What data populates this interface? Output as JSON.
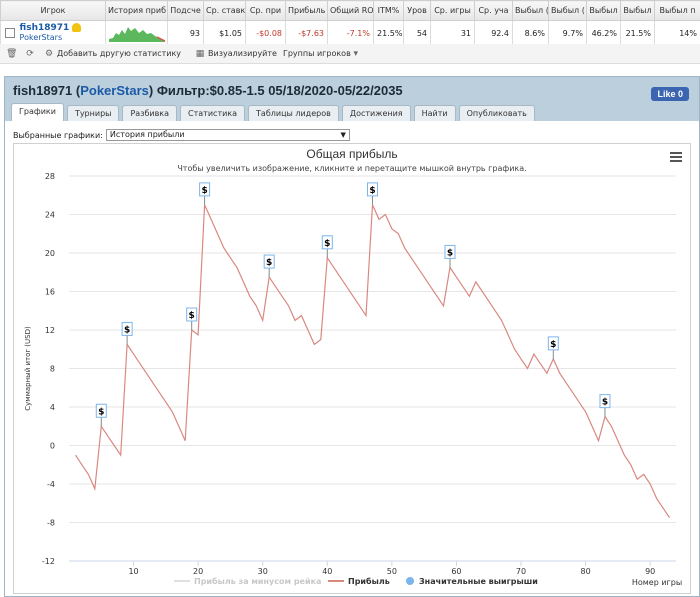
{
  "stats": {
    "headers": [
      "Игрок",
      "История приб",
      "Подсче",
      "Ср. ставк",
      "Ср. при",
      "Прибыль",
      "Общий RO",
      "ITM%",
      "Уров",
      "Ср. игры",
      "Ср. уча",
      "Выбыл (",
      "Выбыл (",
      "Выбыл",
      "Выбыл",
      "Выбыл п"
    ],
    "player": "fish18971",
    "site": "PokerStars",
    "cells": [
      "93",
      "$1.05",
      "-$0.08",
      "-$7.63",
      "-7.1%",
      "21.5%",
      "54",
      "31",
      "92.4",
      "8.6%",
      "9.7%",
      "46.2%",
      "21.5%",
      "14%"
    ]
  },
  "toolbar": {
    "add_stats": "Добавить другую статистику",
    "visualize": "Визуализируйте",
    "groups": "Группы игроков"
  },
  "panel": {
    "player": "fish18971",
    "site": "PokerStars",
    "filter": "Фильтр:$0.85-1.5 05/18/2020-05/22/2035",
    "like": "Like 0",
    "tabs": [
      "Графики",
      "Турниры",
      "Разбивка",
      "Статистика",
      "Таблицы лидеров",
      "Достижения",
      "Найти",
      "Опубликовать"
    ],
    "selected_label": "Выбранные графики:",
    "selected_value": "История прибыли"
  },
  "chart_data": {
    "type": "line",
    "title": "Общая прибыль",
    "subtitle": "Чтобы увеличить изображение, кликните и перетащите мышкой внутрь графика.",
    "xlabel": "Номер игры",
    "ylabel": "Суммарный итог (USD)",
    "xlim": [
      0,
      94
    ],
    "ylim": [
      -12,
      28
    ],
    "xticks": [
      10,
      20,
      30,
      40,
      50,
      60,
      70,
      80,
      90
    ],
    "yticks": [
      -12,
      -8,
      -4,
      0,
      4,
      8,
      12,
      16,
      20,
      24,
      28
    ],
    "grid": "horizontal",
    "legend_position": "bottom",
    "legend": [
      "Прибыль за минусом рейка",
      "Прибыль",
      "Значительные выигрыши"
    ],
    "colors": {
      "profit": "#d98880",
      "rake": "#e0e0e0",
      "wins": "#7cb5ec"
    },
    "series": [
      {
        "name": "Прибыль",
        "x": [
          1,
          2,
          3,
          4,
          5,
          6,
          7,
          8,
          9,
          10,
          11,
          12,
          13,
          14,
          15,
          16,
          17,
          18,
          19,
          20,
          21,
          22,
          23,
          24,
          25,
          26,
          27,
          28,
          29,
          30,
          31,
          32,
          33,
          34,
          35,
          36,
          37,
          38,
          39,
          40,
          41,
          42,
          43,
          44,
          45,
          46,
          47,
          48,
          49,
          50,
          51,
          52,
          53,
          54,
          55,
          56,
          57,
          58,
          59,
          60,
          61,
          62,
          63,
          64,
          65,
          66,
          67,
          68,
          69,
          70,
          71,
          72,
          73,
          74,
          75,
          76,
          77,
          78,
          79,
          80,
          81,
          82,
          83,
          84,
          85,
          86,
          87,
          88,
          89,
          90,
          91,
          92,
          93
        ],
        "y": [
          -1,
          -2,
          -3,
          -4.5,
          2,
          1,
          0,
          -1,
          10.5,
          9.5,
          8.5,
          7.5,
          6.5,
          5.5,
          4.5,
          3.5,
          2,
          0.5,
          12,
          11.5,
          25,
          23.5,
          22,
          20.5,
          19.5,
          18.5,
          17,
          15.5,
          14.5,
          13,
          17.5,
          16.5,
          15.5,
          14.5,
          13,
          13.5,
          12,
          10.5,
          11,
          19.5,
          18.5,
          17.5,
          16.5,
          15.5,
          14.5,
          13.5,
          25,
          23.5,
          24,
          22.5,
          22,
          20.5,
          19.5,
          18.5,
          17.5,
          16.5,
          15.5,
          14.5,
          18.5,
          17.5,
          16.5,
          15.5,
          17,
          16,
          15,
          14,
          13,
          11.5,
          10,
          9,
          8,
          9.5,
          8.5,
          7.5,
          9,
          7.5,
          6.5,
          5.5,
          4.5,
          3.5,
          2,
          0.5,
          3,
          2,
          0.5,
          -1,
          -2,
          -3.5,
          -3,
          -4,
          -5.5,
          -6.5,
          -7.5
        ]
      }
    ],
    "big_wins": [
      {
        "x": 5,
        "y": 2,
        "label": "$"
      },
      {
        "x": 9,
        "y": 10.5,
        "label": "$"
      },
      {
        "x": 19,
        "y": 12,
        "label": "$"
      },
      {
        "x": 21,
        "y": 25,
        "label": "$"
      },
      {
        "x": 31,
        "y": 17.5,
        "label": "$"
      },
      {
        "x": 40,
        "y": 19.5,
        "label": "$"
      },
      {
        "x": 47,
        "y": 25,
        "label": "$"
      },
      {
        "x": 59,
        "y": 18.5,
        "label": "$"
      },
      {
        "x": 75,
        "y": 9,
        "label": "$"
      },
      {
        "x": 83,
        "y": 3,
        "label": "$"
      }
    ]
  }
}
